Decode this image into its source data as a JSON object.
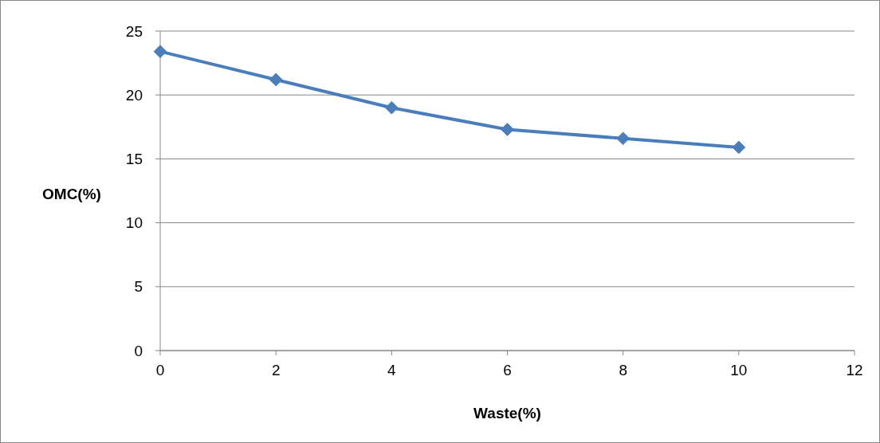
{
  "chart_data": {
    "type": "line",
    "xlabel": "Waste(%)",
    "ylabel": "OMC(%)",
    "x": [
      0,
      2,
      4,
      6,
      8,
      10
    ],
    "series": [
      {
        "color": "#4a7ebb",
        "values": [
          23.4,
          21.2,
          19.0,
          17.3,
          16.6,
          15.9
        ]
      }
    ],
    "xlim": [
      0,
      12
    ],
    "xticks": [
      0,
      2,
      4,
      6,
      8,
      10,
      12
    ],
    "ylim": [
      0,
      25
    ],
    "yticks": [
      0,
      5,
      10,
      15,
      20,
      25
    ],
    "grid": "y",
    "marker": "diamond",
    "line_style": "solid"
  }
}
